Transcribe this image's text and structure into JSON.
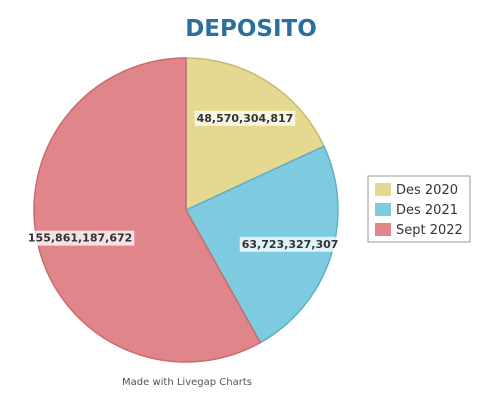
{
  "chart_data": {
    "type": "pie",
    "title": "DEPOSITO",
    "categories": [
      "Des 2020",
      "Des 2021",
      "Sept 2022"
    ],
    "values": [
      48570304817,
      63723327307,
      155861187672
    ],
    "data_labels": [
      "48,570,304,817",
      "63,723,327,307",
      "155,861,187,672"
    ],
    "colors": [
      "#e5d890",
      "#7ecadf",
      "#e0868a"
    ],
    "start_angle": "12 o'clock",
    "direction": "clockwise",
    "legend_position": "right"
  },
  "footer": {
    "credit": "Made with Livegap Charts"
  }
}
